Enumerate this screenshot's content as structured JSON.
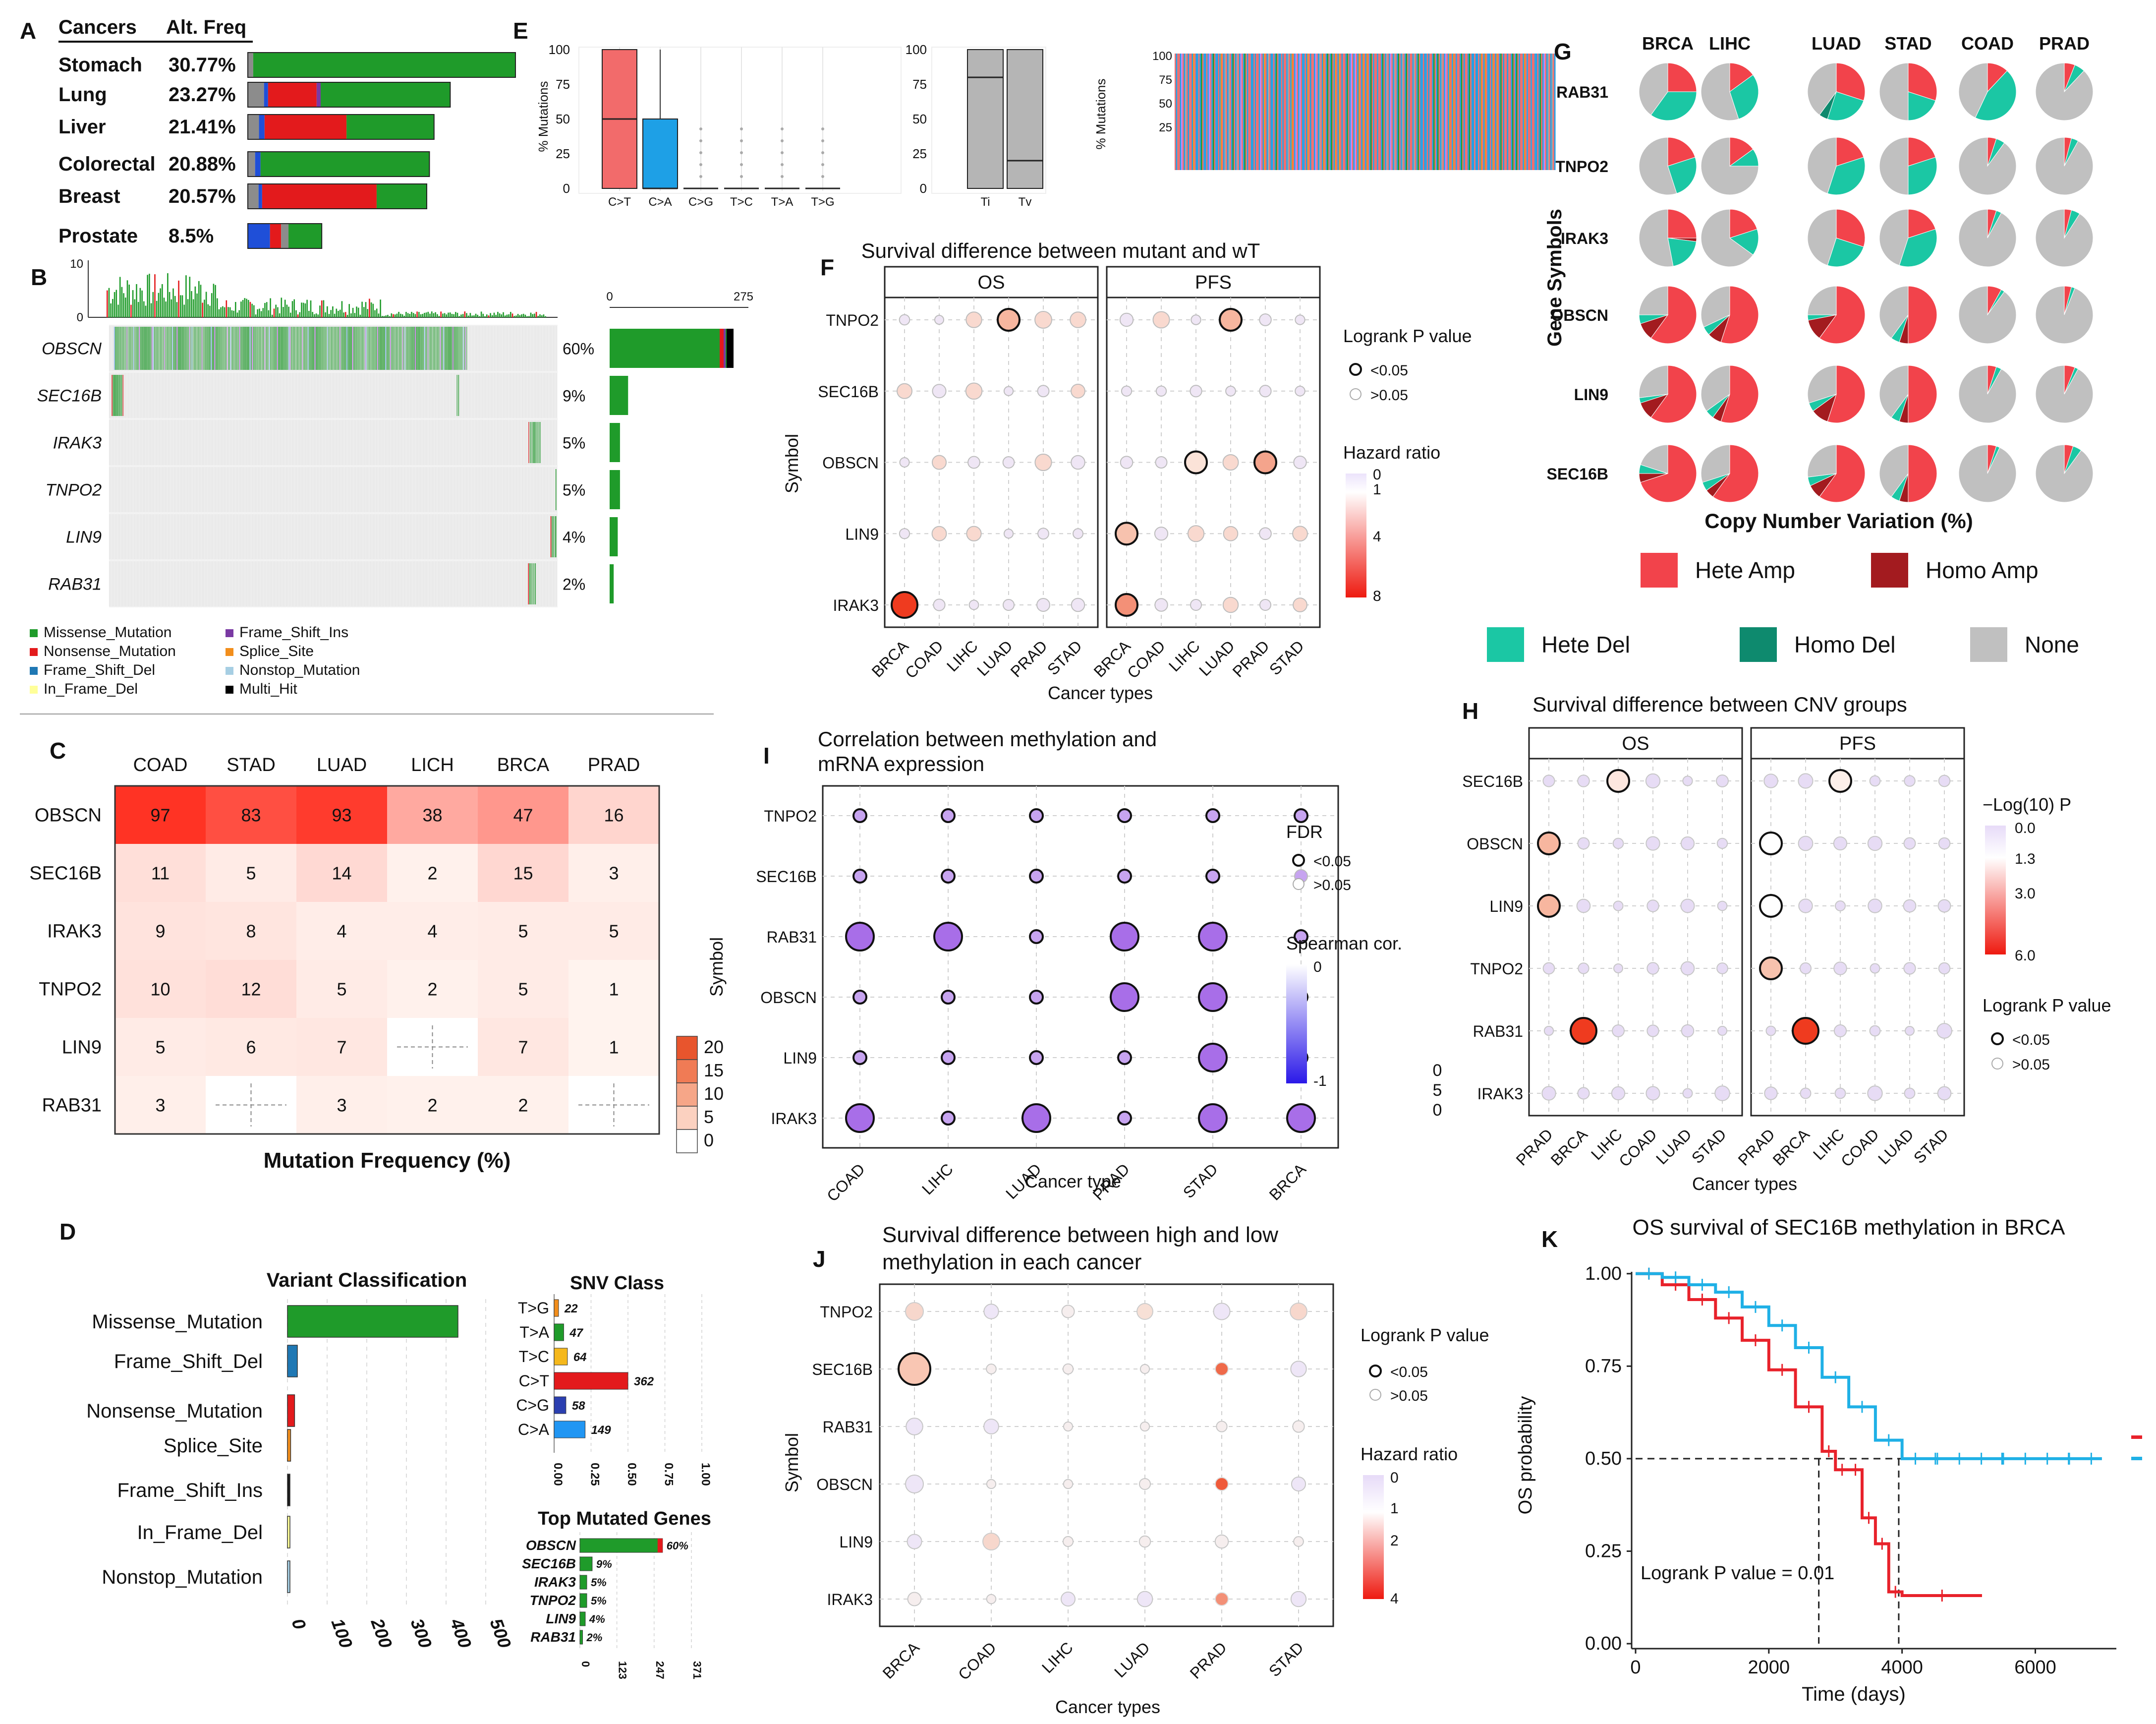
{
  "panels": {
    "A": {
      "letter": "A",
      "header_cancers": "Cancers",
      "header_freq": "Alt. Freq",
      "rows": [
        {
          "cancer": "Stomach",
          "freq": "30.77%",
          "value": 30.77,
          "segments": [
            [
              "gray",
              2
            ],
            [
              "green",
              98
            ]
          ]
        },
        {
          "cancer": "Lung",
          "freq": "23.27%",
          "value": 23.27,
          "segments": [
            [
              "gray",
              8
            ],
            [
              "blue",
              2
            ],
            [
              "red",
              24
            ],
            [
              "purple",
              2
            ],
            [
              "green",
              64
            ]
          ]
        },
        {
          "cancer": "Liver",
          "freq": "21.41%",
          "value": 21.41,
          "segments": [
            [
              "gray",
              6
            ],
            [
              "blue",
              3
            ],
            [
              "red",
              44
            ],
            [
              "green",
              47
            ]
          ]
        },
        {
          "cancer": "Colorectal",
          "freq": "20.88%",
          "value": 20.88,
          "segments": [
            [
              "gray",
              4
            ],
            [
              "blue",
              3
            ],
            [
              "green",
              93
            ]
          ]
        },
        {
          "cancer": "Breast",
          "freq": "20.57%",
          "value": 20.57,
          "segments": [
            [
              "gray",
              6
            ],
            [
              "blue",
              2
            ],
            [
              "red",
              64
            ],
            [
              "green",
              28
            ]
          ]
        },
        {
          "cancer": "Prostate",
          "freq": "8.5%",
          "value": 8.5,
          "segments": [
            [
              "blue",
              30
            ],
            [
              "red",
              15
            ],
            [
              "gray",
              10
            ],
            [
              "green",
              45
            ]
          ]
        }
      ]
    },
    "B": {
      "letter": "B",
      "top_axis": [
        "10",
        "0"
      ],
      "right_axis": [
        "0",
        "275"
      ],
      "genes": [
        {
          "name": "OBSCN",
          "pct": "60%",
          "frac": 0.6,
          "count": 275
        },
        {
          "name": "SEC16B",
          "pct": "9%",
          "frac": 0.09,
          "count": 41
        },
        {
          "name": "IRAK3",
          "pct": "5%",
          "frac": 0.05,
          "count": 23
        },
        {
          "name": "TNPO2",
          "pct": "5%",
          "frac": 0.05,
          "count": 23
        },
        {
          "name": "LIN9",
          "pct": "4%",
          "frac": 0.04,
          "count": 18
        },
        {
          "name": "RAB31",
          "pct": "2%",
          "frac": 0.02,
          "count": 9
        }
      ],
      "legend": [
        {
          "label": "Missense_Mutation",
          "color": "#1f9b2a"
        },
        {
          "label": "Frame_Shift_Ins",
          "color": "#7a3aa3"
        },
        {
          "label": "Nonsense_Mutation",
          "color": "#e31a1c"
        },
        {
          "label": "Splice_Site",
          "color": "#f28e1c"
        },
        {
          "label": "Frame_Shift_Del",
          "color": "#1f78b4"
        },
        {
          "label": "Nonstop_Mutation",
          "color": "#a6cee3"
        },
        {
          "label": "In_Frame_Del",
          "color": "#ffff99"
        },
        {
          "label": "Multi_Hit",
          "color": "#000000"
        }
      ]
    },
    "C": {
      "letter": "C",
      "columns": [
        "COAD",
        "STAD",
        "LUAD",
        "LICH",
        "BRCA",
        "PRAD"
      ],
      "rows": [
        "OBSCN",
        "SEC16B",
        "IRAK3",
        "TNPO2",
        "LIN9",
        "RAB31"
      ],
      "values": [
        [
          97,
          83,
          93,
          38,
          47,
          16
        ],
        [
          11,
          5,
          14,
          2,
          15,
          3
        ],
        [
          9,
          8,
          4,
          4,
          5,
          5
        ],
        [
          10,
          12,
          5,
          2,
          5,
          1
        ],
        [
          5,
          6,
          7,
          null,
          7,
          1
        ],
        [
          3,
          null,
          3,
          2,
          2,
          null
        ]
      ],
      "xlabel": "Mutation Frequency (%)",
      "legend_ticks": [
        "20",
        "15",
        "10",
        "5",
        "0"
      ]
    },
    "D": {
      "letter": "D",
      "vc_title": "Variant Classification",
      "vc_items": [
        {
          "label": "Missense_Mutation",
          "value": 430,
          "color": "#1f9b2a"
        },
        {
          "label": "Frame_Shift_Del",
          "value": 25,
          "color": "#1f78b4"
        },
        {
          "label": "Nonsense_Mutation",
          "value": 18,
          "color": "#e31a1c"
        },
        {
          "label": "Splice_Site",
          "value": 8,
          "color": "#f28e1c"
        },
        {
          "label": "Frame_Shift_Ins",
          "value": 6,
          "color": "#1a1a1a"
        },
        {
          "label": "In_Frame_Del",
          "value": 3,
          "color": "#ffff99"
        },
        {
          "label": "Nonstop_Mutation",
          "value": 3,
          "color": "#a6cee3"
        }
      ],
      "vc_ticks": [
        "0",
        "100",
        "200",
        "300",
        "400",
        "500"
      ],
      "snv_title": "SNV Class",
      "snv_items": [
        {
          "label": "T>G",
          "value": 22,
          "frac": 0.03,
          "color": "#f28e1c"
        },
        {
          "label": "T>A",
          "value": 47,
          "frac": 0.065,
          "color": "#1f9b2a"
        },
        {
          "label": "T>C",
          "value": 64,
          "frac": 0.09,
          "color": "#f5b81c"
        },
        {
          "label": "C>T",
          "value": 362,
          "frac": 0.5,
          "color": "#e31a1c"
        },
        {
          "label": "C>G",
          "value": 58,
          "frac": 0.08,
          "color": "#2b3fb0"
        },
        {
          "label": "C>A",
          "value": 149,
          "frac": 0.21,
          "color": "#2196f3"
        }
      ],
      "snv_value_labels": [
        "22",
        "47",
        "64",
        "362",
        "58",
        "149"
      ],
      "snv_ticks": [
        "0.00",
        "0.25",
        "0.50",
        "0.75",
        "1.00"
      ],
      "tmg_title": "Top Mutated Genes",
      "tmg_items": [
        {
          "label": "OBSCN",
          "pct": "60%",
          "value": 275
        },
        {
          "label": "SEC16B",
          "pct": "9%",
          "value": 41
        },
        {
          "label": "IRAK3",
          "pct": "5%",
          "value": 23
        },
        {
          "label": "TNPO2",
          "pct": "5%",
          "value": 23
        },
        {
          "label": "LIN9",
          "pct": "4%",
          "value": 18
        },
        {
          "label": "RAB31",
          "pct": "2%",
          "value": 9
        }
      ],
      "tmg_ticks": [
        "0",
        "123",
        "247",
        "371"
      ]
    },
    "E": {
      "letter": "E",
      "ylabel": "% Mutations",
      "yticks": [
        "100",
        "75",
        "50",
        "25",
        "0"
      ],
      "boxes": [
        {
          "label": "C>T",
          "q1": 0,
          "median": 50,
          "q3": 100,
          "color": "#f26b6b"
        },
        {
          "label": "C>A",
          "q1": 0,
          "median": 0,
          "q3": 50,
          "color": "#1ea0e6"
        },
        {
          "label": "C>G",
          "q1": 0,
          "median": 0,
          "q3": 0,
          "color": "#777"
        },
        {
          "label": "T>C",
          "q1": 0,
          "median": 0,
          "q3": 0,
          "color": "#777"
        },
        {
          "label": "T>A",
          "q1": 0,
          "median": 0,
          "q3": 0,
          "color": "#777"
        },
        {
          "label": "T>G",
          "q1": 0,
          "median": 0,
          "q3": 0,
          "color": "#777"
        }
      ],
      "titv": [
        {
          "label": "Ti",
          "q1": 0,
          "median": 80,
          "q3": 100
        },
        {
          "label": "Tv",
          "q1": 0,
          "median": 20,
          "q3": 100
        }
      ],
      "stack_yticks": [
        "100",
        "75",
        "50",
        "25"
      ]
    },
    "F": {
      "letter": "F",
      "title": "Survival difference between mutant and wT",
      "facets": [
        "OS",
        "PFS"
      ],
      "rows": [
        "TNPO2",
        "SEC16B",
        "OBSCN",
        "LIN9",
        "IRAK3"
      ],
      "cols": [
        "BRCA",
        "COAD",
        "LIHC",
        "LUAD",
        "PRAD",
        "STAD"
      ],
      "ylabel": "Symbol",
      "xlabel": "Cancer types",
      "legend_p_title": "Logrank P value",
      "legend_p_items": [
        "<0.05",
        ">0.05"
      ],
      "legend_hr_title": "Hazard ratio",
      "legend_hr_ticks": [
        "0",
        "1",
        "4",
        "8"
      ]
    },
    "G": {
      "letter": "G",
      "columns": [
        "BRCA",
        "LIHC",
        "LUAD",
        "STAD",
        "COAD",
        "PRAD"
      ],
      "rows": [
        "RAB31",
        "TNPO2",
        "IRAK3",
        "OBSCN",
        "LIN9",
        "SEC16B"
      ],
      "ylabel": "Gene Symbols",
      "xlabel": "Copy Number Variation (%)",
      "legend": [
        {
          "label": "Hete Amp",
          "color": "#f2434b"
        },
        {
          "label": "Homo Amp",
          "color": "#a31b1f"
        },
        {
          "label": "Hete Del",
          "color": "#1bc7a4"
        },
        {
          "label": "Homo Del",
          "color": "#0e8a6e"
        },
        {
          "label": "None",
          "color": "#c0c0c0"
        }
      ]
    },
    "H": {
      "letter": "H",
      "title": "Survival difference between CNV groups",
      "facets": [
        "OS",
        "PFS"
      ],
      "rows": [
        "SEC16B",
        "OBSCN",
        "LIN9",
        "TNPO2",
        "RAB31",
        "IRAK3"
      ],
      "cols": [
        "PRAD",
        "BRCA",
        "LIHC",
        "COAD",
        "LUAD",
        "STAD"
      ],
      "xlabel": "Cancer types",
      "legend_p_title": "−Log(10) P",
      "legend_p_ticks": [
        "0.0",
        "1.3",
        "3.0",
        "6.0"
      ],
      "legend_lr_title": "Logrank P value",
      "legend_lr_items": [
        "<0.05",
        ">0.05"
      ],
      "stray_ticks": [
        "0",
        "5",
        "0"
      ]
    },
    "I": {
      "letter": "I",
      "title_line1": "Correlation between methylation and",
      "title_line2": "mRNA expression",
      "rows": [
        "TNPO2",
        "SEC16B",
        "RAB31",
        "OBSCN",
        "LIN9",
        "IRAK3"
      ],
      "cols": [
        "COAD",
        "LIHC",
        "LUAD",
        "PRAD",
        "STAD",
        "BRCA"
      ],
      "ylabel": "Symbol",
      "xlabel": "Cancer type",
      "legend_fdr_title": "FDR",
      "legend_fdr_items": [
        "<0.05",
        ">0.05"
      ],
      "legend_sp_title": "Spearman cor.",
      "legend_sp_ticks": [
        "0",
        "-1"
      ]
    },
    "J": {
      "letter": "J",
      "title_line1": "Survival difference between high and low",
      "title_line2": "methylation in each cancer",
      "rows": [
        "TNPO2",
        "SEC16B",
        "RAB31",
        "OBSCN",
        "LIN9",
        "IRAK3"
      ],
      "cols": [
        "BRCA",
        "COAD",
        "LIHC",
        "LUAD",
        "PRAD",
        "STAD"
      ],
      "ylabel": "Symbol",
      "xlabel": "Cancer types",
      "legend_p_title": "Logrank P value",
      "legend_p_items": [
        "<0.05",
        ">0.05"
      ],
      "legend_hr_title": "Hazard ratio",
      "legend_hr_ticks": [
        "0",
        "1",
        "2",
        "4"
      ]
    },
    "K": {
      "letter": "K",
      "title": "OS survival of SEC16B methylation in BRCA",
      "ylabel": "OS probability",
      "xlabel": "Time (days)",
      "yticks": [
        "1.00",
        "0.75",
        "0.50",
        "0.25",
        "0.00"
      ],
      "xticks": [
        "0",
        "2000",
        "4000",
        "6000"
      ],
      "annotation": "Logrank P value = 0.01",
      "colors": {
        "high": "#e8222b",
        "low": "#1fb0e6"
      }
    }
  },
  "chart_data": [
    {
      "type": "bar",
      "title": "Alt. Freq",
      "categories": [
        "Stomach",
        "Lung",
        "Liver",
        "Colorectal",
        "Breast",
        "Prostate"
      ],
      "values": [
        30.77,
        23.27,
        21.41,
        20.88,
        20.57,
        8.5
      ]
    },
    {
      "type": "heatmap",
      "title": "Mutation Frequency (%)",
      "x": [
        "COAD",
        "STAD",
        "LUAD",
        "LICH",
        "BRCA",
        "PRAD"
      ],
      "y": [
        "OBSCN",
        "SEC16B",
        "IRAK3",
        "TNPO2",
        "LIN9",
        "RAB31"
      ],
      "values": [
        [
          97,
          83,
          93,
          38,
          47,
          16
        ],
        [
          11,
          5,
          14,
          2,
          15,
          3
        ],
        [
          9,
          8,
          4,
          4,
          5,
          5
        ],
        [
          10,
          12,
          5,
          2,
          5,
          1
        ],
        [
          5,
          6,
          7,
          null,
          7,
          1
        ],
        [
          3,
          null,
          3,
          2,
          2,
          null
        ]
      ]
    },
    {
      "type": "bar",
      "title": "SNV Class",
      "categories": [
        "T>G",
        "T>A",
        "T>C",
        "C>T",
        "C>G",
        "C>A"
      ],
      "values": [
        22,
        47,
        64,
        362,
        58,
        149
      ]
    },
    {
      "type": "bar",
      "title": "Top Mutated Genes",
      "categories": [
        "OBSCN",
        "SEC16B",
        "IRAK3",
        "TNPO2",
        "LIN9",
        "RAB31"
      ],
      "values": [
        60,
        9,
        5,
        5,
        4,
        2
      ]
    },
    {
      "type": "line",
      "title": "OS survival of SEC16B methylation in BRCA",
      "xlabel": "Time (days)",
      "ylabel": "OS probability",
      "ylim": [
        0,
        1
      ],
      "xlim": [
        0,
        7000
      ],
      "series": [
        {
          "name": "high",
          "x": [
            0,
            400,
            800,
            1200,
            1600,
            2000,
            2400,
            2800,
            3000,
            3200,
            3400,
            3600,
            3800,
            4000,
            5200
          ],
          "y": [
            1.0,
            0.97,
            0.93,
            0.88,
            0.82,
            0.74,
            0.64,
            0.52,
            0.47,
            0.47,
            0.34,
            0.27,
            0.14,
            0.13,
            0.13
          ]
        },
        {
          "name": "low",
          "x": [
            0,
            400,
            800,
            1200,
            1600,
            2000,
            2400,
            2800,
            3200,
            3600,
            4000,
            5000,
            6000,
            7000
          ],
          "y": [
            1.0,
            0.99,
            0.97,
            0.95,
            0.91,
            0.86,
            0.8,
            0.72,
            0.64,
            0.55,
            0.5,
            0.5,
            0.5,
            0.5
          ]
        }
      ]
    }
  ]
}
